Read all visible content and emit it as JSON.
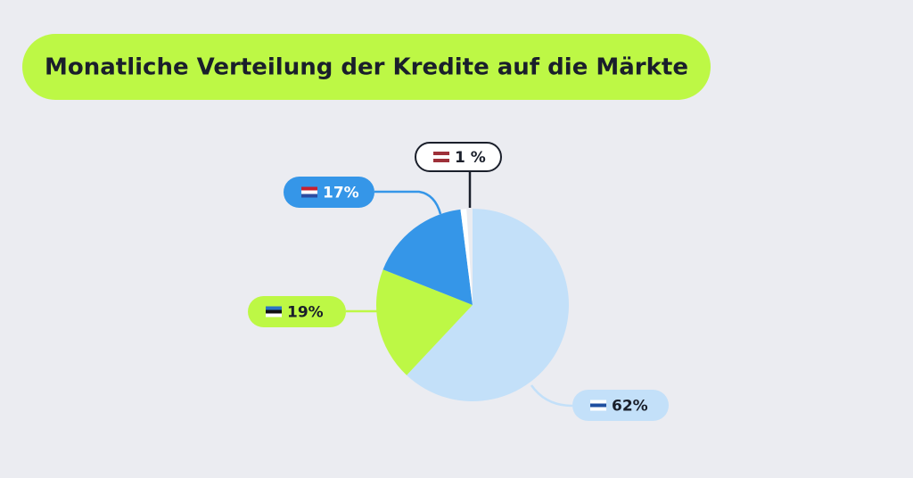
{
  "chart_data": {
    "type": "pie",
    "title": "Monatliche Verteilung der Kredite auf die Märkte",
    "values": [
      62,
      19,
      17,
      1
    ],
    "value_labels": [
      "62%",
      "19%",
      "17%",
      "1 %"
    ],
    "colors": [
      "#c3e0f9",
      "#bdf845",
      "#3596e8",
      "#ffffff"
    ]
  }
}
